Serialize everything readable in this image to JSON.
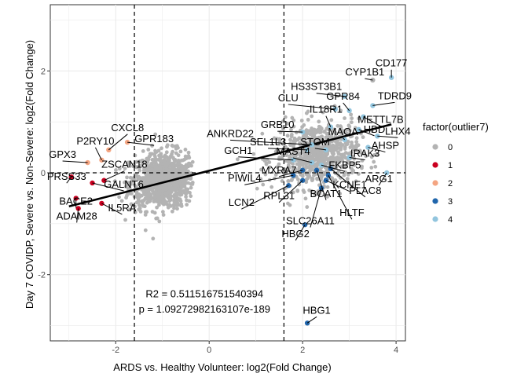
{
  "chart_data": {
    "type": "scatter",
    "xlabel": "ARDS vs. Healthy Volunteer: log2(Fold Change)",
    "ylabel": "Day 7 COVIDP, Severe vs. Non-Severe: log2(Fold Change)",
    "xlim": [
      -3.4,
      4.2
    ],
    "ylim": [
      -3.3,
      3.3
    ],
    "x_ticks": [
      {
        "v": -2,
        "label": "-2"
      },
      {
        "v": 0,
        "label": "0"
      },
      {
        "v": 2,
        "label": "2"
      },
      {
        "v": 4,
        "label": "4"
      }
    ],
    "y_ticks": [
      {
        "v": -2,
        "label": "-2"
      },
      {
        "v": 0,
        "label": "0"
      },
      {
        "v": 2,
        "label": "2"
      }
    ],
    "grid": true,
    "vlines": [
      -1.6,
      1.6
    ],
    "hline": 0,
    "regression": {
      "x": [
        -3.0,
        3.9
      ],
      "y": [
        -0.66,
        0.95
      ]
    },
    "annotations": [
      {
        "text": "R2 = 0.511516751540394",
        "x": -0.1,
        "y": -2.38
      },
      {
        "text": "p = 1.09272982163107e-189",
        "x": -0.1,
        "y": -2.68
      }
    ],
    "legend": {
      "title": "factor(outlier7)",
      "position": "right",
      "entries": [
        {
          "label": "0",
          "color": "#b3b3b3"
        },
        {
          "label": "1",
          "color": "#ca0020"
        },
        {
          "label": "2",
          "color": "#f4a582"
        },
        {
          "label": "3",
          "color": "#2166ac"
        },
        {
          "label": "4",
          "color": "#92c5de"
        }
      ]
    },
    "colors": {
      "0": "#b3b3b3",
      "1": "#ca0020",
      "2": "#f4a582",
      "3": "#2166ac",
      "4": "#92c5de"
    },
    "labeled_points": [
      {
        "label": "CD177",
        "x": 3.9,
        "y": 1.87,
        "group": "4"
      },
      {
        "label": "CYP1B1",
        "x": 3.5,
        "y": 1.82,
        "group": "0"
      },
      {
        "label": "HS3ST3B1",
        "x": 2.9,
        "y": 1.5,
        "group": "4"
      },
      {
        "label": "TDRD9",
        "x": 3.5,
        "y": 1.32,
        "group": "4"
      },
      {
        "label": "CLU",
        "x": 2.7,
        "y": 1.25,
        "group": "4"
      },
      {
        "label": "GPR84",
        "x": 3.0,
        "y": 1.22,
        "group": "4"
      },
      {
        "label": "METTL7B",
        "x": 3.3,
        "y": 1.1,
        "group": "4"
      },
      {
        "label": "GRB10",
        "x": 2.0,
        "y": 0.8,
        "group": "4"
      },
      {
        "label": "IL18R1",
        "x": 2.6,
        "y": 0.9,
        "group": "4"
      },
      {
        "label": "HBD",
        "x": 3.2,
        "y": 0.85,
        "group": "4"
      },
      {
        "label": "LHX4",
        "x": 3.6,
        "y": 0.72,
        "group": "4"
      },
      {
        "label": "MAOA",
        "x": 2.9,
        "y": 0.65,
        "group": "4"
      },
      {
        "label": "AHSP",
        "x": 3.4,
        "y": 0.5,
        "group": "4"
      },
      {
        "label": "ANKRD22",
        "x": 2.2,
        "y": 0.55,
        "group": "4"
      },
      {
        "label": "SEL1L3",
        "x": 2.1,
        "y": 0.45,
        "group": "4"
      },
      {
        "label": "STOM",
        "x": 2.5,
        "y": 0.45,
        "group": "4"
      },
      {
        "label": "GCH1",
        "x": 1.8,
        "y": 0.25,
        "group": "4"
      },
      {
        "label": "MAST4",
        "x": 2.2,
        "y": 0.2,
        "group": "4"
      },
      {
        "label": "FKBP5",
        "x": 2.4,
        "y": 0.15,
        "group": "4"
      },
      {
        "label": "IRAK3",
        "x": 3.0,
        "y": 0.3,
        "group": "4"
      },
      {
        "label": "MXRA7",
        "x": 2.0,
        "y": 0.05,
        "group": "3"
      },
      {
        "label": "ARG1",
        "x": 3.8,
        "y": 0.0,
        "group": "4"
      },
      {
        "label": "KCNE1",
        "x": 2.5,
        "y": -0.15,
        "group": "3"
      },
      {
        "label": "PIWIL4",
        "x": 1.8,
        "y": -0.05,
        "group": "3"
      },
      {
        "label": "RPL31",
        "x": 2.0,
        "y": -0.15,
        "group": "3"
      },
      {
        "label": "BCAT1",
        "x": 2.3,
        "y": 0.05,
        "group": "3"
      },
      {
        "label": "PLAC8",
        "x": 2.6,
        "y": 0.08,
        "group": "3"
      },
      {
        "label": "LCN2",
        "x": 1.7,
        "y": -0.25,
        "group": "3"
      },
      {
        "label": "SLC26A11",
        "x": 2.4,
        "y": -0.3,
        "group": "3"
      },
      {
        "label": "HLTF",
        "x": 2.55,
        "y": -0.05,
        "group": "3"
      },
      {
        "label": "HBG2",
        "x": 2.05,
        "y": -1.02,
        "group": "3"
      },
      {
        "label": "HBG1",
        "x": 2.1,
        "y": -2.95,
        "group": "3"
      },
      {
        "label": "CXCL8",
        "x": -2.15,
        "y": 0.45,
        "group": "2"
      },
      {
        "label": "P2RY10",
        "x": -2.3,
        "y": 0.25,
        "group": "2"
      },
      {
        "label": "GPR183",
        "x": -1.75,
        "y": 0.6,
        "group": "2"
      },
      {
        "label": "GPX3",
        "x": -2.6,
        "y": 0.2,
        "group": "2"
      },
      {
        "label": "ZSCAN18",
        "x": -2.25,
        "y": -0.15,
        "group": "1"
      },
      {
        "label": "PRSS33",
        "x": -2.95,
        "y": -0.08,
        "group": "1"
      },
      {
        "label": "GALNT6",
        "x": -2.5,
        "y": -0.2,
        "group": "1"
      },
      {
        "label": "BACE2",
        "x": -2.85,
        "y": -0.5,
        "group": "1"
      },
      {
        "label": "IL5RA",
        "x": -2.3,
        "y": -0.6,
        "group": "1"
      },
      {
        "label": "ADAM28",
        "x": -2.8,
        "y": -0.7,
        "group": "1"
      }
    ]
  }
}
